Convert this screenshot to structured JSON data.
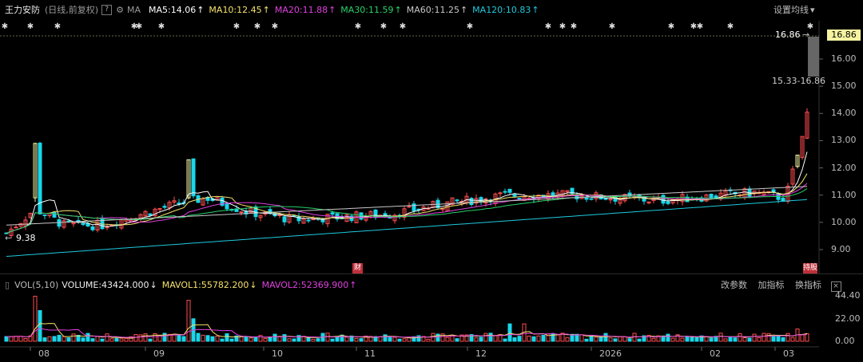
{
  "header": {
    "stock_name": "王力安防",
    "period_label": "(日线,前复权)",
    "help": "?",
    "ma_label": "MA",
    "ma5": "MA5:14.06",
    "ma10": "MA10:12.45",
    "ma20": "MA20:11.88",
    "ma30": "MA30:11.59",
    "ma60": "MA60:11.25",
    "ma120": "MA120:10.83",
    "up_arrow": "↑",
    "settings": "设置均线",
    "settings_chevron": "▾"
  },
  "price_axis": {
    "ticks": [
      "16.00",
      "15.00",
      "14.00",
      "13.00",
      "12.00",
      "11.00",
      "10.00",
      "9.00"
    ],
    "current_price": "16.86",
    "high_label": "16.86",
    "range_label": "15.33-16.86",
    "low_label": "9.38"
  },
  "tags": {
    "earnings": "财",
    "ex_rights": "持股"
  },
  "volume": {
    "label": "VOL(5,10)",
    "volume": "VOLUME:43424.000",
    "mavol1": "MAVOL1:55782.200",
    "mavol2": "MAVOL2:52369.900",
    "down_arrow": "↓",
    "up_arrow": "↑",
    "buttons": [
      "改参数",
      "加指标",
      "换指标"
    ],
    "close": "×",
    "ticks": [
      "44.40",
      "22.00",
      "0.00"
    ]
  },
  "time_axis": {
    "labels": [
      "08",
      "09",
      "10",
      "11",
      "12",
      "2026",
      "02",
      "03"
    ]
  },
  "colors": {
    "up": "#ff4d4f",
    "down": "#18d6ea",
    "flat": "#f5f3a0",
    "ma5": "#ffffff",
    "ma10": "#f5e26b",
    "ma20": "#e040e0",
    "ma30": "#28d26a",
    "ma60": "#c8c8c8",
    "ma120": "#1ec9dc"
  }
}
